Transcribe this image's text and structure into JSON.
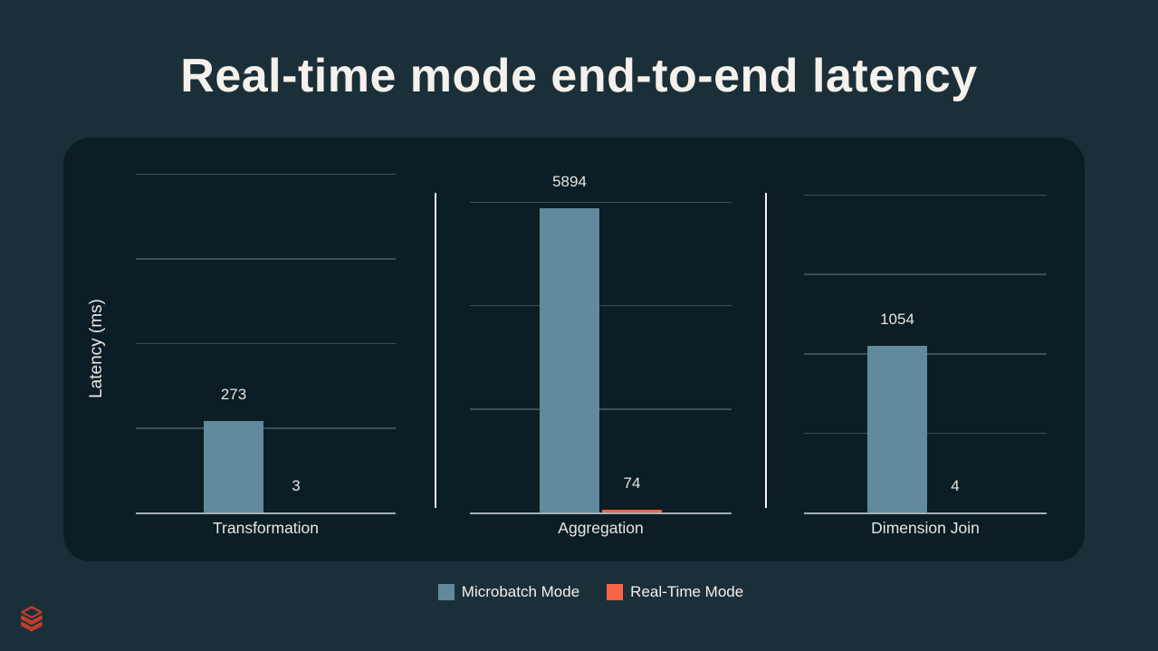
{
  "title": "Real-time mode end-to-end latency",
  "chart_data": {
    "type": "bar",
    "title": "Real-time mode end-to-end latency",
    "ylabel": "Latency (ms)",
    "xlabel": "",
    "grid": true,
    "legend_position": "bottom",
    "categories": [
      "Transformation",
      "Aggregation",
      "Dimension Join"
    ],
    "series": [
      {
        "name": "Microbatch Mode",
        "color": "#618a9a",
        "values": [
          273,
          5894,
          1054
        ]
      },
      {
        "name": "Real-Time Mode",
        "color": "#fa6446",
        "values": [
          3,
          74,
          4
        ]
      }
    ],
    "panels": [
      {
        "category": "Transformation",
        "values": [
          273,
          3
        ],
        "gridlines": [
          250,
          500,
          750,
          1000
        ],
        "ylim": [
          0,
          1100
        ]
      },
      {
        "category": "Aggregation",
        "values": [
          5894,
          74
        ],
        "gridlines": [
          2000,
          4000,
          6000
        ],
        "ylim": [
          0,
          6200
        ]
      },
      {
        "category": "Dimension Join",
        "values": [
          1054,
          4
        ],
        "gridlines": [
          500,
          1000,
          1500,
          2000
        ],
        "ylim": [
          0,
          2300
        ]
      }
    ]
  },
  "legend": {
    "items": [
      {
        "label": "Microbatch Mode",
        "color": "#618a9a"
      },
      {
        "label": "Real-Time Mode",
        "color": "#fa6446"
      }
    ]
  },
  "icons": {
    "logo": "databricks-stacked-layers-icon"
  },
  "colors": {
    "page_background": "#1b2f38",
    "card_background": "#0b1d25",
    "gridline": "#3c4e56",
    "axis_line": "#a3aeb3",
    "title_text": "#f5f1ec",
    "label_text": "#e9e7e4",
    "logo": "#c23f2c"
  }
}
